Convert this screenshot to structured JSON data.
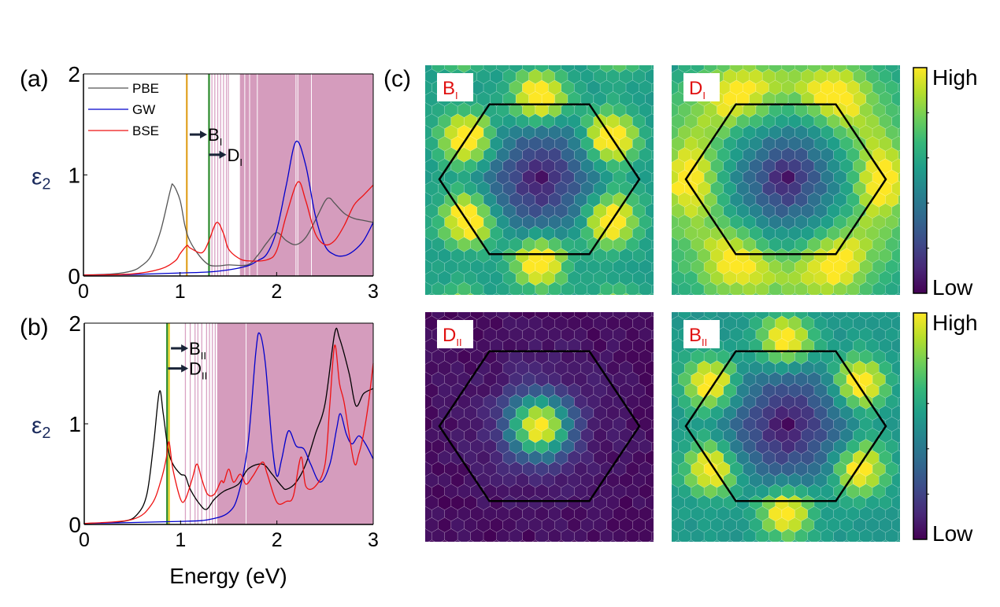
{
  "panel_labels": {
    "a": "(a)",
    "b": "(b)",
    "c": "(c)"
  },
  "chart_data": [
    {
      "type": "line",
      "panel": "(a)",
      "xlabel": "",
      "ylabel": "ε2",
      "xlim": [
        0,
        3
      ],
      "ylim": [
        0,
        2
      ],
      "xticks": [
        "0",
        "1",
        "2",
        "3"
      ],
      "yticks": [
        "0",
        "1",
        "2"
      ],
      "legend": "top-left",
      "series": [
        {
          "name": "PBE",
          "color": "#555555",
          "x": [
            0,
            0.3,
            0.5,
            0.6,
            0.7,
            0.8,
            0.9,
            0.93,
            1.0,
            1.05,
            1.1,
            1.2,
            1.3,
            1.4,
            1.5,
            1.7,
            1.8,
            1.9,
            2.0,
            2.1,
            2.2,
            2.3,
            2.4,
            2.5,
            2.55,
            2.6,
            2.7,
            2.8,
            2.9,
            3.0
          ],
          "y": [
            0.01,
            0.02,
            0.05,
            0.1,
            0.2,
            0.45,
            0.85,
            0.9,
            0.75,
            0.5,
            0.35,
            0.2,
            0.11,
            0.1,
            0.11,
            0.11,
            0.2,
            0.33,
            0.43,
            0.35,
            0.31,
            0.38,
            0.55,
            0.74,
            0.77,
            0.72,
            0.62,
            0.57,
            0.55,
            0.53
          ]
        },
        {
          "name": "GW",
          "color": "#0000cc",
          "x": [
            0,
            0.5,
            1.0,
            1.3,
            1.5,
            1.7,
            1.8,
            1.9,
            2.0,
            2.1,
            2.2,
            2.3,
            2.4,
            2.5,
            2.6,
            2.7,
            2.8,
            2.9,
            3.0
          ],
          "y": [
            0.01,
            0.015,
            0.03,
            0.04,
            0.06,
            0.1,
            0.15,
            0.22,
            0.45,
            0.9,
            1.33,
            1.1,
            0.6,
            0.3,
            0.21,
            0.2,
            0.25,
            0.35,
            0.53
          ]
        },
        {
          "name": "BSE",
          "color": "#ee1111",
          "x": [
            0,
            0.5,
            0.8,
            0.95,
            1.0,
            1.07,
            1.1,
            1.2,
            1.25,
            1.3,
            1.38,
            1.45,
            1.5,
            1.6,
            1.7,
            1.9,
            2.0,
            2.1,
            2.22,
            2.3,
            2.4,
            2.5,
            2.6,
            2.7,
            2.8,
            2.9,
            3.0
          ],
          "y": [
            0.01,
            0.02,
            0.07,
            0.15,
            0.22,
            0.3,
            0.28,
            0.23,
            0.25,
            0.35,
            0.53,
            0.42,
            0.27,
            0.18,
            0.15,
            0.16,
            0.25,
            0.6,
            0.93,
            0.75,
            0.42,
            0.31,
            0.35,
            0.5,
            0.7,
            0.8,
            0.9
          ]
        }
      ],
      "marker_lines": [
        {
          "x": 1.07,
          "color": "#e0a020"
        },
        {
          "x": 1.3,
          "color": "#2a8a2a"
        }
      ],
      "transition_lines": [
        1.33,
        1.36,
        1.39,
        1.42,
        1.45,
        1.48,
        1.5
      ],
      "shaded_region": {
        "from": 1.62,
        "to": 3.0,
        "color": "#d59cbd"
      },
      "gap_lines": [
        1.67,
        1.72,
        1.8,
        2.2,
        2.22,
        2.36
      ],
      "annotations": [
        {
          "label": "B",
          "sub": "I",
          "y": 1.4,
          "x_from": 1.1,
          "x_to": 1.28
        },
        {
          "label": "D",
          "sub": "I",
          "y": 1.2,
          "x_from": 1.3,
          "x_to": 1.48
        }
      ]
    },
    {
      "type": "line",
      "panel": "(b)",
      "xlabel": "Energy (eV)",
      "ylabel": "ε2",
      "xlim": [
        0,
        3
      ],
      "ylim": [
        0,
        2
      ],
      "xticks": [
        "0",
        "1",
        "2",
        "3"
      ],
      "yticks": [
        "0",
        "1",
        "2"
      ],
      "series": [
        {
          "color": "#000000",
          "x": [
            0,
            0.4,
            0.55,
            0.65,
            0.72,
            0.78,
            0.82,
            0.87,
            0.92,
            1.0,
            1.05,
            1.1,
            1.2,
            1.27,
            1.35,
            1.45,
            1.6,
            1.7,
            1.85,
            1.95,
            2.05,
            2.1,
            2.2,
            2.3,
            2.4,
            2.5,
            2.6,
            2.65,
            2.75,
            2.82,
            2.9,
            3.0
          ],
          "y": [
            0.01,
            0.03,
            0.1,
            0.3,
            0.8,
            1.32,
            1.1,
            0.75,
            0.6,
            0.5,
            0.48,
            0.35,
            0.2,
            0.15,
            0.25,
            0.33,
            0.4,
            0.55,
            0.6,
            0.5,
            0.38,
            0.35,
            0.42,
            0.6,
            0.9,
            1.2,
            1.9,
            1.85,
            1.5,
            1.18,
            1.3,
            1.35
          ]
        },
        {
          "color": "#0000cc",
          "x": [
            0,
            1.0,
            1.3,
            1.5,
            1.6,
            1.7,
            1.78,
            1.82,
            1.88,
            1.95,
            2.0,
            2.05,
            2.12,
            2.2,
            2.28,
            2.35,
            2.45,
            2.55,
            2.62,
            2.66,
            2.72,
            2.78,
            2.85,
            2.92,
            3.0
          ],
          "y": [
            0.01,
            0.03,
            0.05,
            0.12,
            0.3,
            0.8,
            1.7,
            1.9,
            1.6,
            0.8,
            0.48,
            0.65,
            0.93,
            0.78,
            0.75,
            0.6,
            0.42,
            0.6,
            0.95,
            1.1,
            0.9,
            0.8,
            0.88,
            0.8,
            0.65
          ]
        },
        {
          "color": "#ee1111",
          "x": [
            0,
            0.5,
            0.7,
            0.8,
            0.85,
            0.88,
            0.92,
            1.0,
            1.05,
            1.12,
            1.17,
            1.22,
            1.28,
            1.35,
            1.42,
            1.45,
            1.5,
            1.55,
            1.62,
            1.68,
            1.75,
            1.85,
            1.9,
            2.0,
            2.1,
            2.17,
            2.25,
            2.3,
            2.4,
            2.5,
            2.55,
            2.6,
            2.65,
            2.7,
            2.8,
            2.85,
            2.9,
            2.95,
            3.0
          ],
          "y": [
            0.01,
            0.05,
            0.2,
            0.45,
            0.65,
            0.82,
            0.55,
            0.25,
            0.25,
            0.45,
            0.6,
            0.45,
            0.3,
            0.3,
            0.43,
            0.42,
            0.55,
            0.42,
            0.5,
            0.4,
            0.48,
            0.62,
            0.5,
            0.22,
            0.23,
            0.28,
            0.67,
            0.38,
            0.38,
            0.6,
            1.2,
            1.78,
            1.4,
            1.2,
            0.62,
            0.7,
            0.9,
            1.2,
            1.6
          ]
        }
      ],
      "marker_lines": [
        {
          "x": 0.86,
          "color": "#2a8a2a"
        },
        {
          "x": 0.88,
          "color": "#e8d020"
        }
      ],
      "transition_lines": [
        1.05,
        1.1,
        1.15,
        1.18,
        1.22,
        1.27,
        1.3,
        1.33,
        1.36
      ],
      "shaded_region": {
        "from": 1.38,
        "to": 3.0,
        "color": "#d59cbd"
      },
      "gap_lines": [
        1.68
      ],
      "annotations": [
        {
          "label": "B",
          "sub": "II",
          "y": 1.75,
          "x_from": 0.9,
          "x_to": 1.08
        },
        {
          "label": "D",
          "sub": "II",
          "y": 1.55,
          "x_from": 0.87,
          "x_to": 1.08
        }
      ]
    },
    {
      "type": "heatmap",
      "panel": "(c)",
      "colormap": "viridis",
      "maps": [
        {
          "label": "B",
          "sub": "I",
          "label_color": "#e01010"
        },
        {
          "label": "D",
          "sub": "I",
          "label_color": "#e01010"
        },
        {
          "label": "D",
          "sub": "II",
          "label_color": "#e01010"
        },
        {
          "label": "B",
          "sub": "II",
          "label_color": "#e01010"
        }
      ],
      "colorbar": {
        "high": "High",
        "low": "Low"
      }
    }
  ]
}
